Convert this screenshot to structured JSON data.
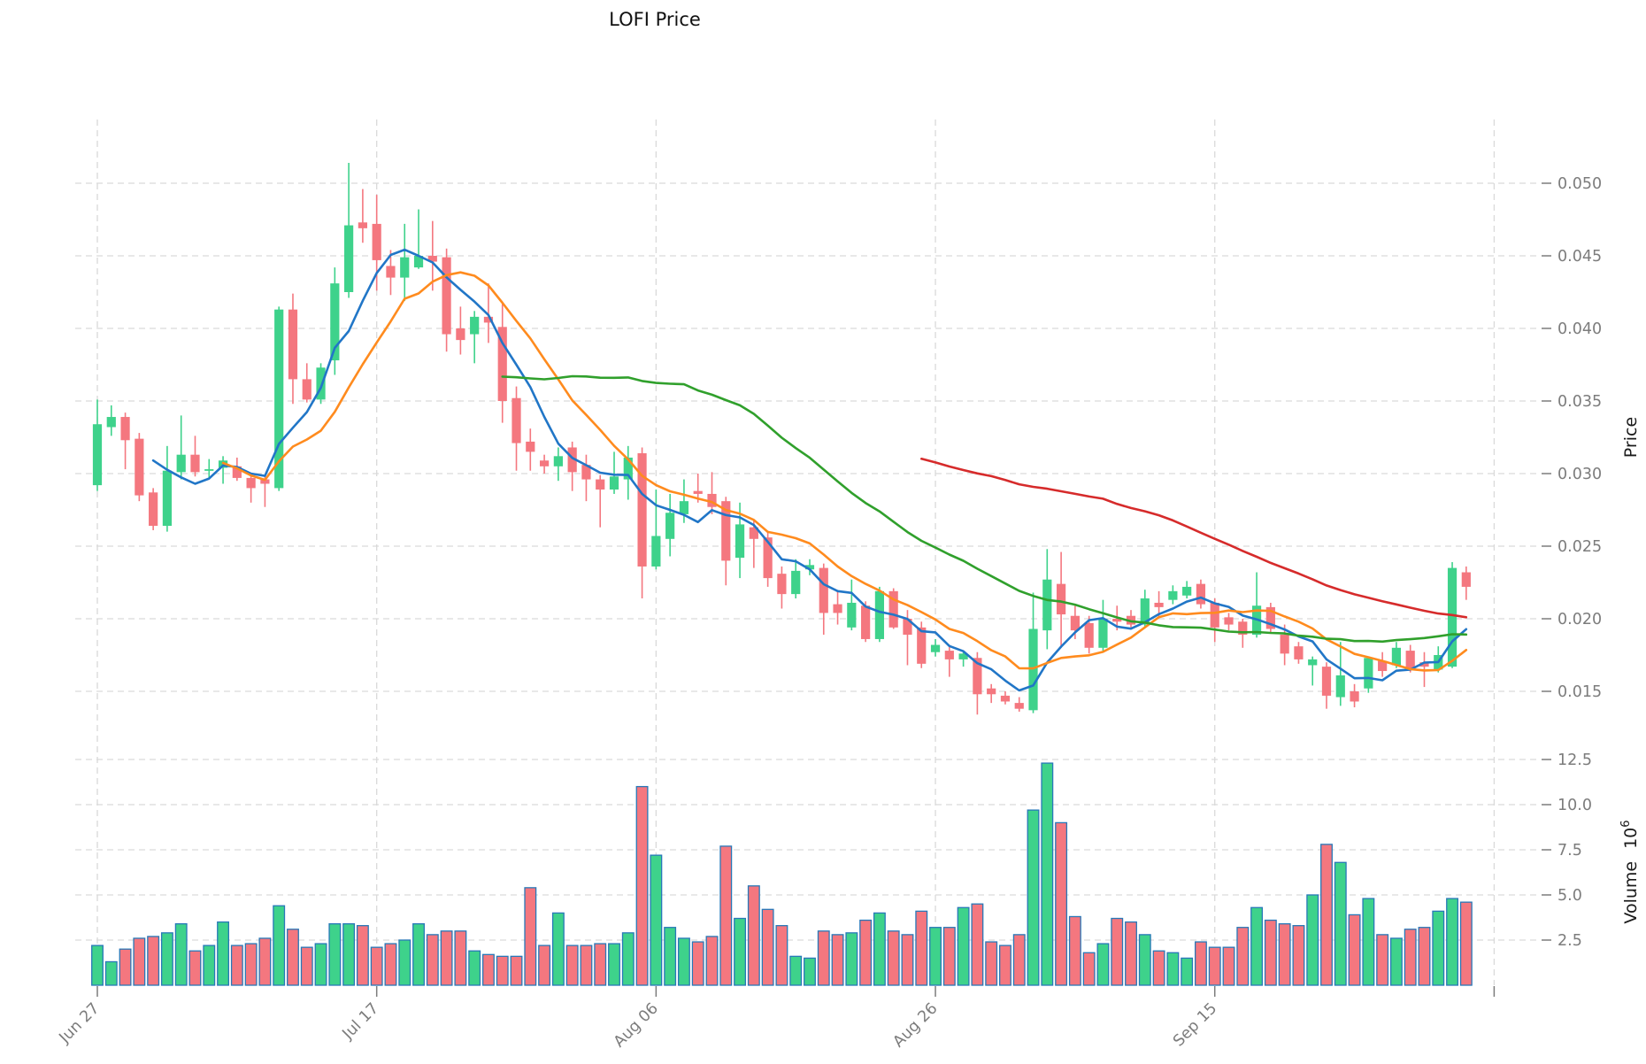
{
  "title": "LOFI Price",
  "axes": {
    "price_label": "Price",
    "volume_label": "Volume",
    "volume_factor": "10",
    "volume_exponent": "6",
    "price_ticks": [
      "0.050",
      "0.045",
      "0.040",
      "0.035",
      "0.030",
      "0.025",
      "0.020",
      "0.015"
    ],
    "volume_ticks": [
      "12.5",
      "10.0",
      "7.5",
      "5.0",
      "2.5"
    ],
    "x_ticks": [
      "Jun 27",
      "Jul 17",
      "Aug 06",
      "Aug 26",
      "Sep 15"
    ]
  },
  "colors": {
    "up": "#3ed28b",
    "down": "#f4777f",
    "volume_edge": "#2878b8",
    "ma_blue": "#2176c7",
    "ma_orange": "#ff8b1e",
    "ma_green": "#30a02c",
    "ma_red": "#d62b2b",
    "grid": "#d9d9d9",
    "tick_text": "#7c7c7c",
    "title_text": "#111111"
  },
  "chart_data": {
    "type": "candlestick",
    "title": "LOFI Price",
    "ylabel_price": "Price",
    "ylabel_volume": "Volume 10^6",
    "legend": "none",
    "grid": "dashed, both axes",
    "price_axis": {
      "side": "right",
      "ticks": [
        0.05,
        0.045,
        0.04,
        0.035,
        0.03,
        0.025,
        0.02,
        0.015
      ],
      "range": [
        0.0125,
        0.0545
      ]
    },
    "volume_axis": {
      "side": "right",
      "ticks": [
        12.5,
        10.0,
        7.5,
        5.0,
        2.5
      ],
      "range": [
        0,
        13.4
      ],
      "unit": "millions"
    },
    "x_axis": {
      "tick_labels": [
        "Jun 27",
        "Jul 17",
        "Aug 06",
        "Aug 26",
        "Sep 15"
      ],
      "tick_day_indices": [
        0,
        20,
        40,
        60,
        80,
        100
      ],
      "unlabeled_last_tick": true,
      "label_rotation_deg": 45
    },
    "overlays": [
      {
        "name": "ma_blue",
        "period": 5,
        "color": "#2176c7"
      },
      {
        "name": "ma_orange",
        "period": 10,
        "color": "#ff8b1e"
      },
      {
        "name": "ma_green",
        "period": 30,
        "color": "#30a02c"
      },
      {
        "name": "ma_red",
        "period": 60,
        "color": "#d62b2b"
      }
    ],
    "candle_format": [
      "open",
      "high",
      "low",
      "close",
      "volume_millions"
    ],
    "dates": [
      "Jun 27",
      "Jun 28",
      "Jun 29",
      "Jun 30",
      "Jul 01",
      "Jul 02",
      "Jul 03",
      "Jul 04",
      "Jul 05",
      "Jul 06",
      "Jul 07",
      "Jul 08",
      "Jul 09",
      "Jul 10",
      "Jul 11",
      "Jul 12",
      "Jul 13",
      "Jul 14",
      "Jul 15",
      "Jul 16",
      "Jul 17",
      "Jul 18",
      "Jul 19",
      "Jul 20",
      "Jul 21",
      "Jul 22",
      "Jul 23",
      "Jul 24",
      "Jul 25",
      "Jul 26",
      "Jul 27",
      "Jul 28",
      "Jul 29",
      "Jul 30",
      "Jul 31",
      "Aug 01",
      "Aug 02",
      "Aug 03",
      "Aug 04",
      "Aug 05",
      "Aug 06",
      "Aug 07",
      "Aug 08",
      "Aug 09",
      "Aug 10",
      "Aug 11",
      "Aug 12",
      "Aug 13",
      "Aug 14",
      "Aug 15",
      "Aug 16",
      "Aug 17",
      "Aug 18",
      "Aug 19",
      "Aug 20",
      "Aug 21",
      "Aug 22",
      "Aug 23",
      "Aug 24",
      "Aug 25",
      "Aug 26",
      "Aug 27",
      "Aug 28",
      "Aug 29",
      "Aug 30",
      "Aug 31",
      "Sep 01",
      "Sep 02",
      "Sep 03",
      "Sep 04",
      "Sep 05",
      "Sep 06",
      "Sep 07",
      "Sep 08",
      "Sep 09",
      "Sep 10",
      "Sep 11",
      "Sep 12",
      "Sep 13",
      "Sep 14",
      "Sep 15",
      "Sep 16",
      "Sep 17",
      "Sep 18",
      "Sep 19",
      "Sep 20",
      "Sep 21",
      "Sep 22",
      "Sep 23",
      "Sep 24",
      "Sep 25",
      "Sep 26",
      "Sep 27",
      "Sep 28",
      "Sep 29",
      "Sep 30",
      "Oct 01",
      "Oct 02",
      "Oct 03"
    ],
    "candles": [
      [
        0.0292,
        0.0351,
        0.0288,
        0.0334,
        2.2
      ],
      [
        0.0332,
        0.0347,
        0.0326,
        0.0339,
        1.3
      ],
      [
        0.0339,
        0.0342,
        0.0303,
        0.0323,
        2.0
      ],
      [
        0.0324,
        0.0328,
        0.0281,
        0.0285,
        2.6
      ],
      [
        0.0287,
        0.029,
        0.0261,
        0.0264,
        2.7
      ],
      [
        0.0264,
        0.0319,
        0.026,
        0.0302,
        2.9
      ],
      [
        0.0301,
        0.034,
        0.0296,
        0.0313,
        3.4
      ],
      [
        0.0313,
        0.0326,
        0.0298,
        0.0301,
        1.9
      ],
      [
        0.0302,
        0.031,
        0.0296,
        0.0303,
        2.2
      ],
      [
        0.0304,
        0.0312,
        0.0293,
        0.0309,
        3.5
      ],
      [
        0.0305,
        0.0311,
        0.0295,
        0.0297,
        2.2
      ],
      [
        0.0297,
        0.03,
        0.028,
        0.029,
        2.3
      ],
      [
        0.0296,
        0.0298,
        0.0277,
        0.0293,
        2.6
      ],
      [
        0.029,
        0.0415,
        0.0288,
        0.0413,
        4.4
      ],
      [
        0.0413,
        0.0424,
        0.0348,
        0.0365,
        3.1
      ],
      [
        0.0365,
        0.0376,
        0.0349,
        0.0351,
        2.1
      ],
      [
        0.0351,
        0.0376,
        0.0348,
        0.0373,
        2.3
      ],
      [
        0.0378,
        0.0442,
        0.0368,
        0.0431,
        3.4
      ],
      [
        0.0425,
        0.0514,
        0.0421,
        0.0471,
        3.4
      ],
      [
        0.0473,
        0.0496,
        0.0459,
        0.0469,
        3.3
      ],
      [
        0.0472,
        0.0492,
        0.0426,
        0.0447,
        2.1
      ],
      [
        0.0443,
        0.0454,
        0.0423,
        0.0435,
        2.3
      ],
      [
        0.0435,
        0.0472,
        0.0419,
        0.0449,
        2.5
      ],
      [
        0.0442,
        0.0482,
        0.0441,
        0.045,
        3.4
      ],
      [
        0.045,
        0.0474,
        0.0426,
        0.0446,
        2.8
      ],
      [
        0.0449,
        0.0455,
        0.0384,
        0.0396,
        3.0
      ],
      [
        0.04,
        0.0415,
        0.0382,
        0.0392,
        3.0
      ],
      [
        0.0396,
        0.0412,
        0.0376,
        0.0408,
        1.9
      ],
      [
        0.0408,
        0.0431,
        0.039,
        0.0404,
        1.7
      ],
      [
        0.0401,
        0.0418,
        0.0335,
        0.035,
        1.6
      ],
      [
        0.0352,
        0.036,
        0.0302,
        0.0321,
        1.6
      ],
      [
        0.0322,
        0.0331,
        0.0302,
        0.0315,
        5.4
      ],
      [
        0.0309,
        0.0313,
        0.03,
        0.0305,
        2.2
      ],
      [
        0.0305,
        0.0318,
        0.0295,
        0.0312,
        4.0
      ],
      [
        0.0318,
        0.0322,
        0.0288,
        0.0301,
        2.2
      ],
      [
        0.0306,
        0.0313,
        0.0281,
        0.0296,
        2.2
      ],
      [
        0.0296,
        0.0299,
        0.0263,
        0.0289,
        2.3
      ],
      [
        0.0289,
        0.0315,
        0.0286,
        0.0298,
        2.3
      ],
      [
        0.0296,
        0.0319,
        0.0282,
        0.0311,
        2.9
      ],
      [
        0.0314,
        0.0318,
        0.0214,
        0.0236,
        11.0
      ],
      [
        0.0236,
        0.0289,
        0.0234,
        0.0257,
        7.2
      ],
      [
        0.0255,
        0.0286,
        0.0243,
        0.0273,
        3.2
      ],
      [
        0.0272,
        0.0296,
        0.0266,
        0.0281,
        2.6
      ],
      [
        0.0288,
        0.03,
        0.028,
        0.0286,
        2.4
      ],
      [
        0.0286,
        0.0301,
        0.0272,
        0.0277,
        2.7
      ],
      [
        0.0281,
        0.0284,
        0.0223,
        0.024,
        7.7
      ],
      [
        0.0242,
        0.028,
        0.0228,
        0.0265,
        3.7
      ],
      [
        0.0263,
        0.0268,
        0.0235,
        0.0255,
        5.5
      ],
      [
        0.0256,
        0.026,
        0.0222,
        0.0228,
        4.2
      ],
      [
        0.0231,
        0.0236,
        0.0207,
        0.0217,
        3.3
      ],
      [
        0.0217,
        0.0241,
        0.0214,
        0.0233,
        1.6
      ],
      [
        0.0234,
        0.0241,
        0.023,
        0.0237,
        1.5
      ],
      [
        0.0235,
        0.0238,
        0.0189,
        0.0204,
        3.0
      ],
      [
        0.021,
        0.0219,
        0.0196,
        0.0204,
        2.8
      ],
      [
        0.0194,
        0.0227,
        0.0192,
        0.0211,
        2.9
      ],
      [
        0.0209,
        0.0212,
        0.0184,
        0.0186,
        3.6
      ],
      [
        0.0186,
        0.0222,
        0.0184,
        0.0219,
        4.0
      ],
      [
        0.0219,
        0.0221,
        0.0193,
        0.0194,
        3.0
      ],
      [
        0.02,
        0.0206,
        0.0168,
        0.0189,
        2.8
      ],
      [
        0.0194,
        0.0198,
        0.0166,
        0.0169,
        4.1
      ],
      [
        0.0177,
        0.0186,
        0.0174,
        0.0182,
        3.2
      ],
      [
        0.0178,
        0.0182,
        0.016,
        0.0172,
        3.2
      ],
      [
        0.0172,
        0.0177,
        0.0167,
        0.0176,
        4.3
      ],
      [
        0.0173,
        0.0177,
        0.0134,
        0.0148,
        4.5
      ],
      [
        0.0152,
        0.0155,
        0.0142,
        0.0148,
        2.4
      ],
      [
        0.0147,
        0.015,
        0.0141,
        0.0143,
        2.2
      ],
      [
        0.0142,
        0.0146,
        0.0136,
        0.0138,
        2.8
      ],
      [
        0.0137,
        0.0218,
        0.0135,
        0.0193,
        9.7
      ],
      [
        0.0192,
        0.0248,
        0.0179,
        0.0227,
        12.3
      ],
      [
        0.0224,
        0.0246,
        0.018,
        0.0203,
        9.0
      ],
      [
        0.0202,
        0.0209,
        0.0186,
        0.0192,
        3.8
      ],
      [
        0.0197,
        0.0202,
        0.0176,
        0.018,
        1.8
      ],
      [
        0.018,
        0.0213,
        0.0178,
        0.02,
        2.3
      ],
      [
        0.02,
        0.0209,
        0.0192,
        0.0198,
        3.7
      ],
      [
        0.0202,
        0.0206,
        0.0194,
        0.0196,
        3.5
      ],
      [
        0.0196,
        0.022,
        0.0194,
        0.0214,
        2.8
      ],
      [
        0.0211,
        0.0219,
        0.0201,
        0.0208,
        1.9
      ],
      [
        0.0213,
        0.0223,
        0.021,
        0.0219,
        1.8
      ],
      [
        0.0216,
        0.0226,
        0.0214,
        0.0222,
        1.5
      ],
      [
        0.0224,
        0.0227,
        0.0207,
        0.021,
        2.4
      ],
      [
        0.0211,
        0.0214,
        0.0184,
        0.0194,
        2.1
      ],
      [
        0.0201,
        0.0204,
        0.0192,
        0.0196,
        2.1
      ],
      [
        0.0198,
        0.02,
        0.018,
        0.0189,
        3.2
      ],
      [
        0.0189,
        0.0232,
        0.0187,
        0.0209,
        4.3
      ],
      [
        0.0208,
        0.0211,
        0.019,
        0.0193,
        3.6
      ],
      [
        0.0189,
        0.0196,
        0.0168,
        0.0176,
        3.4
      ],
      [
        0.0181,
        0.0184,
        0.0169,
        0.0172,
        3.3
      ],
      [
        0.0168,
        0.0174,
        0.0154,
        0.0172,
        5.0
      ],
      [
        0.0167,
        0.017,
        0.0138,
        0.0147,
        7.8
      ],
      [
        0.0146,
        0.0184,
        0.014,
        0.0161,
        6.8
      ],
      [
        0.015,
        0.0155,
        0.0139,
        0.0143,
        3.9
      ],
      [
        0.0152,
        0.0174,
        0.0149,
        0.0173,
        4.8
      ],
      [
        0.0171,
        0.0177,
        0.016,
        0.0164,
        2.8
      ],
      [
        0.0168,
        0.0184,
        0.0166,
        0.018,
        2.6
      ],
      [
        0.0178,
        0.0182,
        0.0163,
        0.0165,
        3.1
      ],
      [
        0.017,
        0.0177,
        0.0153,
        0.0167,
        3.2
      ],
      [
        0.0165,
        0.0181,
        0.0163,
        0.0175,
        4.1
      ],
      [
        0.0167,
        0.0239,
        0.0166,
        0.0235,
        4.8
      ],
      [
        0.0232,
        0.0236,
        0.0213,
        0.0222,
        4.6
      ]
    ]
  }
}
